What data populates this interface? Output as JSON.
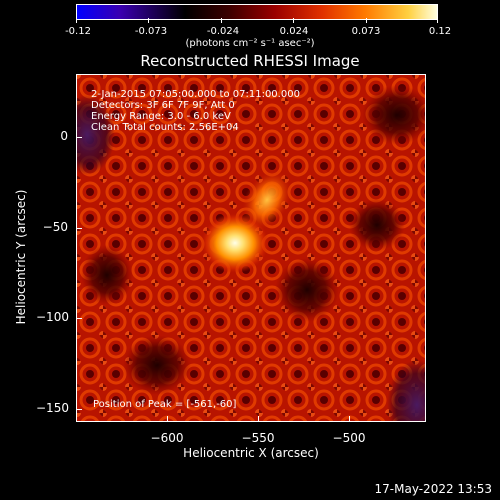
{
  "colorbar": {
    "ticks": [
      "-0.12",
      "-0.073",
      "-0.024",
      "0.024",
      "0.073",
      "0.12"
    ],
    "unit": "(photons cm⁻² s⁻¹ asec⁻²)"
  },
  "title": "Reconstructed RHESSI Image",
  "info": {
    "time_range": "2-Jan-2015 07:05:00.000 to 07:11:00.000",
    "detectors": "Detectors: 3F 6F 7F 9F, Att 0",
    "energy": "Energy Range: 3.0 - 6.0 keV",
    "method": "Clean    Total counts: 2.56E+04",
    "peak": "Position of Peak = [-561,-60]"
  },
  "axes": {
    "xlabel": "Heliocentric X (arcsec)",
    "ylabel": "Heliocentric Y (arcsec)",
    "xticks": [
      "−600",
      "−550",
      "−500"
    ],
    "yticks": [
      "0",
      "−50",
      "−100",
      "−150"
    ]
  },
  "datestamp": "17-May-2022 13:53",
  "colors": {
    "background": "#000000",
    "source_core": "#ffffd0",
    "map_base": "#c01800"
  }
}
